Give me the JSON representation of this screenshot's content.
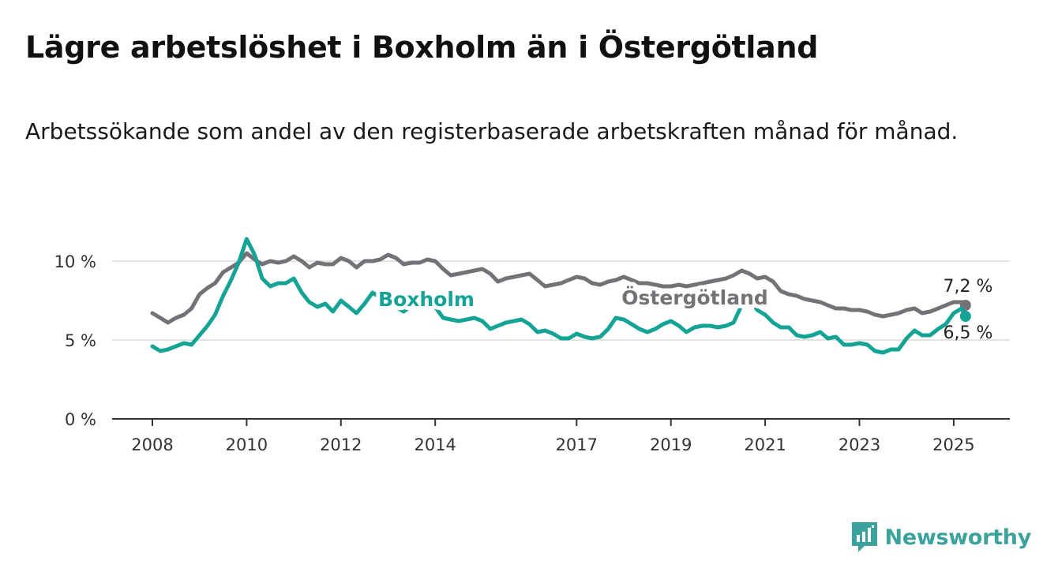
{
  "title": "Lägre arbetslöshet i Boxholm än i Östergötland",
  "subtitle": "Arbetssökande som andel av den registerbaserade arbetskraften månad för månad.",
  "brand": "Newsworthy",
  "colors": {
    "boxholm": "#14a394",
    "ostergotland": "#757277",
    "brand": "#3ba39b",
    "grid": "#d8d8d8",
    "axis": "#333333"
  },
  "chart_data": {
    "type": "line",
    "y_unit": "%",
    "ylim": [
      0,
      11.5
    ],
    "xlim": [
      2008,
      2026
    ],
    "y_ticks": [
      {
        "value": 0,
        "label": "0 %"
      },
      {
        "value": 5,
        "label": "5 %"
      },
      {
        "value": 10,
        "label": "10 %"
      }
    ],
    "x_ticks": [
      {
        "value": 2008,
        "label": "2008"
      },
      {
        "value": 2010,
        "label": "2010"
      },
      {
        "value": 2012,
        "label": "2012"
      },
      {
        "value": 2014,
        "label": "2014"
      },
      {
        "value": 2017,
        "label": "2017"
      },
      {
        "value": 2019,
        "label": "2019"
      },
      {
        "value": 2021,
        "label": "2021"
      },
      {
        "value": 2023,
        "label": "2023"
      },
      {
        "value": 2025,
        "label": "2025"
      }
    ],
    "grid": true,
    "series": [
      {
        "name": "Östergötland",
        "color_key": "ostergotland",
        "end_label": "7,2 %",
        "x": [
          2008.0,
          2008.17,
          2008.33,
          2008.5,
          2008.67,
          2008.83,
          2009.0,
          2009.17,
          2009.33,
          2009.5,
          2009.67,
          2009.83,
          2010.0,
          2010.17,
          2010.33,
          2010.5,
          2010.67,
          2010.83,
          2011.0,
          2011.17,
          2011.33,
          2011.5,
          2011.67,
          2011.83,
          2012.0,
          2012.17,
          2012.33,
          2012.5,
          2012.67,
          2012.83,
          2013.0,
          2013.17,
          2013.33,
          2013.5,
          2013.67,
          2013.83,
          2014.0,
          2014.17,
          2014.33,
          2014.5,
          2014.67,
          2014.83,
          2015.0,
          2015.17,
          2015.33,
          2015.5,
          2015.67,
          2015.83,
          2016.0,
          2016.17,
          2016.33,
          2016.5,
          2016.67,
          2016.83,
          2017.0,
          2017.17,
          2017.33,
          2017.5,
          2017.67,
          2017.83,
          2018.0,
          2018.17,
          2018.33,
          2018.5,
          2018.67,
          2018.83,
          2019.0,
          2019.17,
          2019.33,
          2019.5,
          2019.67,
          2019.83,
          2020.0,
          2020.17,
          2020.33,
          2020.5,
          2020.67,
          2020.83,
          2021.0,
          2021.17,
          2021.33,
          2021.5,
          2021.67,
          2021.83,
          2022.0,
          2022.17,
          2022.33,
          2022.5,
          2022.67,
          2022.83,
          2023.0,
          2023.17,
          2023.33,
          2023.5,
          2023.67,
          2023.83,
          2024.0,
          2024.17,
          2024.33,
          2024.5,
          2024.67,
          2024.83,
          2025.0,
          2025.17,
          2025.25
        ],
        "values": [
          6.7,
          6.4,
          6.1,
          6.4,
          6.6,
          7.0,
          7.9,
          8.3,
          8.6,
          9.3,
          9.6,
          9.9,
          10.5,
          10.1,
          9.8,
          10.0,
          9.9,
          10.0,
          10.3,
          10.0,
          9.6,
          9.9,
          9.8,
          9.8,
          10.2,
          10.0,
          9.6,
          10.0,
          10.0,
          10.1,
          10.4,
          10.2,
          9.8,
          9.9,
          9.9,
          10.1,
          10.0,
          9.5,
          9.1,
          9.2,
          9.3,
          9.4,
          9.5,
          9.2,
          8.7,
          8.9,
          9.0,
          9.1,
          9.2,
          8.8,
          8.4,
          8.5,
          8.6,
          8.8,
          9.0,
          8.9,
          8.6,
          8.5,
          8.7,
          8.8,
          9.0,
          8.8,
          8.6,
          8.6,
          8.5,
          8.4,
          8.4,
          8.5,
          8.4,
          8.5,
          8.6,
          8.7,
          8.8,
          8.9,
          9.1,
          9.4,
          9.2,
          8.9,
          9.0,
          8.7,
          8.1,
          7.9,
          7.8,
          7.6,
          7.5,
          7.4,
          7.2,
          7.0,
          7.0,
          6.9,
          6.9,
          6.8,
          6.6,
          6.5,
          6.6,
          6.7,
          6.9,
          7.0,
          6.7,
          6.8,
          7.0,
          7.2,
          7.4,
          7.4,
          7.2
        ]
      },
      {
        "name": "Boxholm",
        "color_key": "boxholm",
        "end_label": "6,5 %",
        "x": [
          2008.0,
          2008.17,
          2008.33,
          2008.5,
          2008.67,
          2008.83,
          2009.0,
          2009.17,
          2009.33,
          2009.5,
          2009.67,
          2009.83,
          2010.0,
          2010.17,
          2010.33,
          2010.5,
          2010.67,
          2010.83,
          2011.0,
          2011.17,
          2011.33,
          2011.5,
          2011.67,
          2011.83,
          2012.0,
          2012.17,
          2012.33,
          2012.5,
          2012.67,
          2012.83,
          2013.0,
          2013.17,
          2013.33,
          2013.5,
          2013.67,
          2013.83,
          2014.0,
          2014.17,
          2014.33,
          2014.5,
          2014.67,
          2014.83,
          2015.0,
          2015.17,
          2015.33,
          2015.5,
          2015.67,
          2015.83,
          2016.0,
          2016.17,
          2016.33,
          2016.5,
          2016.67,
          2016.83,
          2017.0,
          2017.17,
          2017.33,
          2017.5,
          2017.67,
          2017.83,
          2018.0,
          2018.17,
          2018.33,
          2018.5,
          2018.67,
          2018.83,
          2019.0,
          2019.17,
          2019.33,
          2019.5,
          2019.67,
          2019.83,
          2020.0,
          2020.17,
          2020.33,
          2020.5,
          2020.67,
          2020.83,
          2021.0,
          2021.17,
          2021.33,
          2021.5,
          2021.67,
          2021.83,
          2022.0,
          2022.17,
          2022.33,
          2022.5,
          2022.67,
          2022.83,
          2023.0,
          2023.17,
          2023.33,
          2023.5,
          2023.67,
          2023.83,
          2024.0,
          2024.17,
          2024.33,
          2024.5,
          2024.67,
          2024.83,
          2025.0,
          2025.17,
          2025.25
        ],
        "values": [
          4.6,
          4.3,
          4.4,
          4.6,
          4.8,
          4.7,
          5.3,
          5.9,
          6.6,
          7.8,
          8.8,
          9.9,
          11.4,
          10.4,
          8.9,
          8.4,
          8.6,
          8.6,
          8.9,
          8.0,
          7.4,
          7.1,
          7.3,
          6.8,
          7.5,
          7.1,
          6.7,
          7.3,
          8.0,
          7.7,
          7.5,
          7.1,
          6.8,
          7.2,
          7.6,
          7.5,
          7.1,
          6.4,
          6.3,
          6.2,
          6.3,
          6.4,
          6.2,
          5.7,
          5.9,
          6.1,
          6.2,
          6.3,
          6.0,
          5.5,
          5.6,
          5.4,
          5.1,
          5.1,
          5.4,
          5.2,
          5.1,
          5.2,
          5.7,
          6.4,
          6.3,
          6.0,
          5.7,
          5.5,
          5.7,
          6.0,
          6.2,
          5.9,
          5.5,
          5.8,
          5.9,
          5.9,
          5.8,
          5.9,
          6.1,
          7.2,
          7.7,
          6.9,
          6.6,
          6.1,
          5.8,
          5.8,
          5.3,
          5.2,
          5.3,
          5.5,
          5.1,
          5.2,
          4.7,
          4.7,
          4.8,
          4.7,
          4.3,
          4.2,
          4.4,
          4.4,
          5.1,
          5.6,
          5.3,
          5.3,
          5.7,
          6.0,
          6.7,
          7.0,
          6.5
        ]
      }
    ]
  }
}
